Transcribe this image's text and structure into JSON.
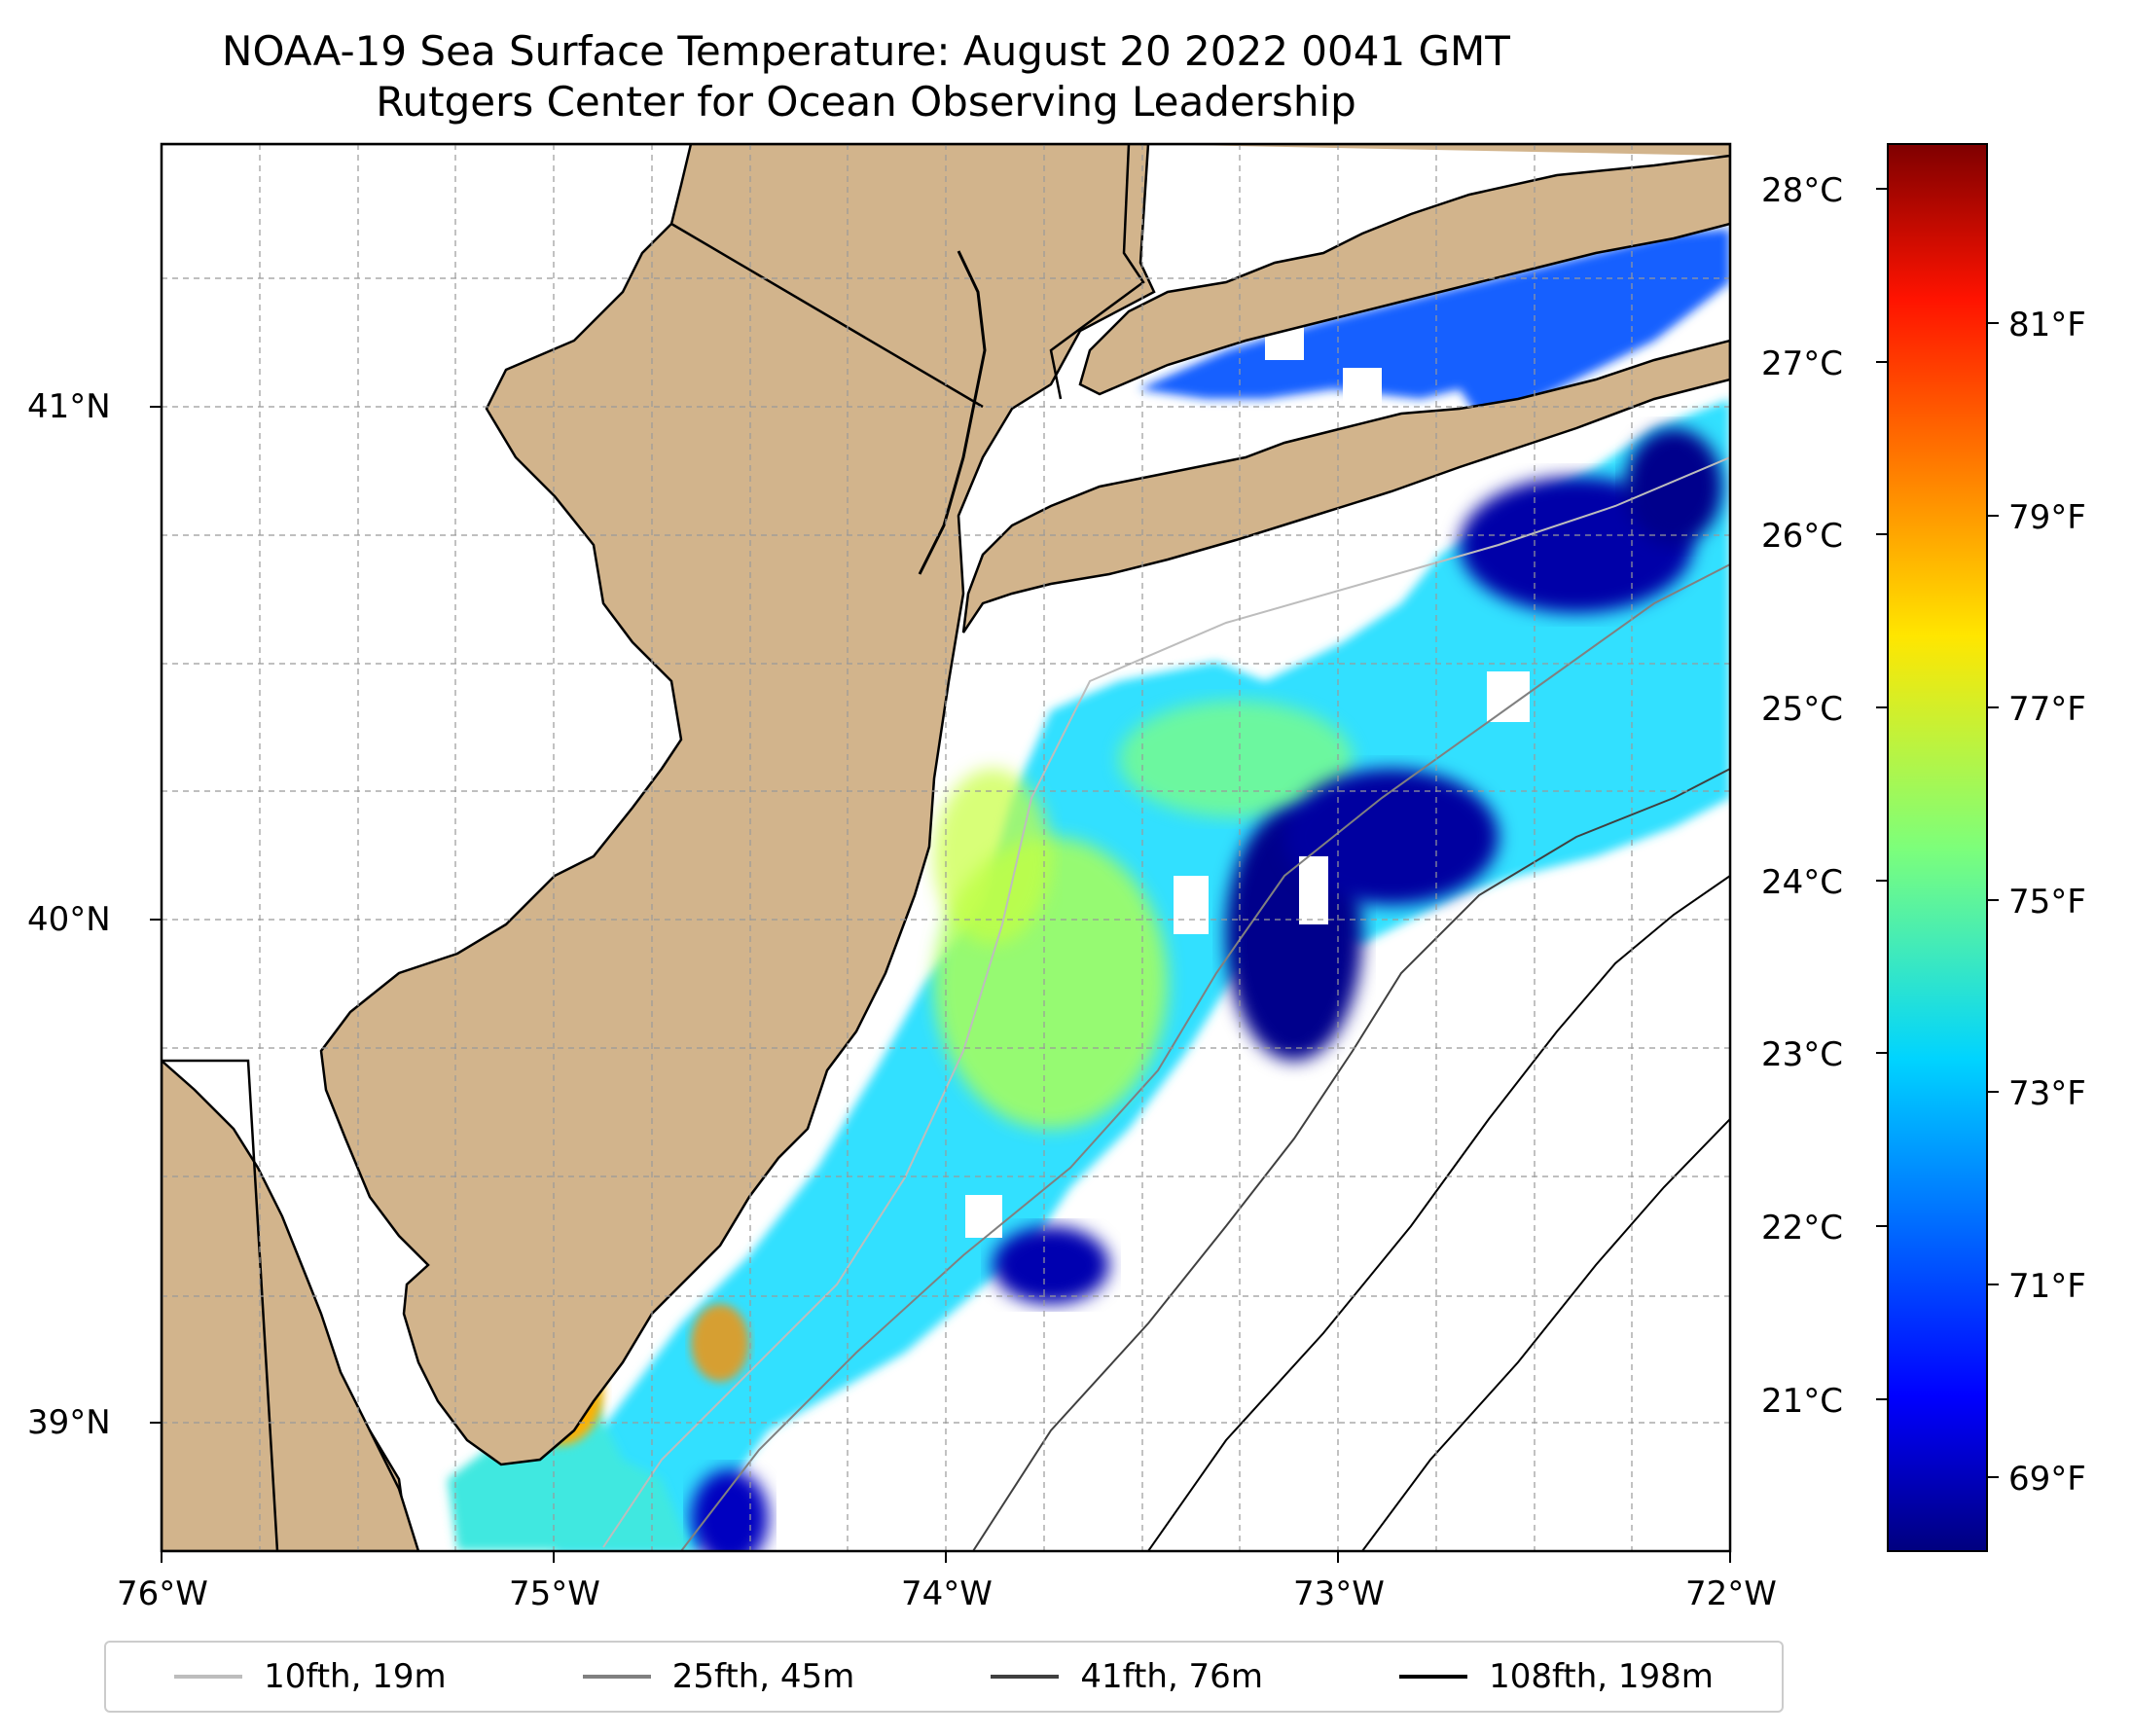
{
  "title": {
    "line1": "NOAA-19 Sea Surface Temperature: August 20 2022 0041 GMT",
    "line2": "Rutgers Center for Ocean Observing Leadership"
  },
  "map": {
    "land_color": "#d2b48c",
    "ocean_color": "#ffffff",
    "lon_ticks": [
      "76°W",
      "75°W",
      "74°W",
      "73°W",
      "72°W"
    ],
    "lat_ticks": [
      "41°N",
      "40°N",
      "39°N"
    ],
    "gridlines": true,
    "colormap": "jet"
  },
  "colorbar": {
    "celsius_ticks": [
      "28°C",
      "27°C",
      "26°C",
      "25°C",
      "24°C",
      "23°C",
      "22°C",
      "21°C"
    ],
    "fahrenheit_ticks": [
      "81°F",
      "79°F",
      "77°F",
      "75°F",
      "73°F",
      "71°F",
      "69°F"
    ]
  },
  "legend": {
    "items": [
      {
        "label": "10fth, 19m",
        "color": "#bdbdbd"
      },
      {
        "label": "25fth, 45m",
        "color": "#808080"
      },
      {
        "label": "41fth, 76m",
        "color": "#404040"
      },
      {
        "label": "108fth, 198m",
        "color": "#000000"
      }
    ]
  }
}
